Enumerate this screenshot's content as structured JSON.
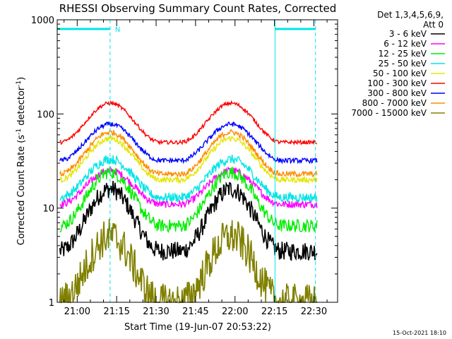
{
  "chart_data": {
    "type": "line",
    "title": "RHESSI Observing Summary Count Rates, Corrected",
    "xlabel": "Start Time (19-Jun-07 20:53:22)",
    "ylabel_main": "Corrected Count Rate (s",
    "ylabel_sup1": "-1",
    "ylabel_mid": " detector",
    "ylabel_sup2": "-1",
    "ylabel_end": ")",
    "yscale": "log",
    "ylim": [
      1,
      1000
    ],
    "xlim_minutes": [
      -7.6,
      99.0
    ],
    "x_ticks": [
      {
        "minutes": 0,
        "label": "21:00"
      },
      {
        "minutes": 15,
        "label": "21:15"
      },
      {
        "minutes": 30,
        "label": "21:30"
      },
      {
        "minutes": 45,
        "label": "21:45"
      },
      {
        "minutes": 60,
        "label": "22:00"
      },
      {
        "minutes": 75,
        "label": "22:15"
      },
      {
        "minutes": 90,
        "label": "22:30"
      }
    ],
    "y_ticks": [
      {
        "value": 1,
        "label": "1"
      },
      {
        "value": 10,
        "label": "10"
      },
      {
        "value": 100,
        "label": "100"
      },
      {
        "value": 1000,
        "label": "1000"
      }
    ],
    "legend_header": [
      "Det 1,3,4,5,6,9,",
      "Att 0"
    ],
    "peaks_minutes": [
      12.5,
      58.5
    ],
    "series": [
      {
        "name": "3 - 6 keV",
        "color": "#000000",
        "base": 3.5,
        "peak": 16,
        "noise": 0.1
      },
      {
        "name": "6 - 12 keV",
        "color": "#ff00ff",
        "base": 11,
        "peak": 25,
        "noise": 0.04
      },
      {
        "name": "12 - 25 keV",
        "color": "#00ee00",
        "base": 6.5,
        "peak": 24,
        "noise": 0.07
      },
      {
        "name": "25 - 50 keV",
        "color": "#00e5e5",
        "base": 13,
        "peak": 33,
        "noise": 0.05
      },
      {
        "name": "50 - 100 keV",
        "color": "#e5e500",
        "base": 20,
        "peak": 55,
        "noise": 0.03
      },
      {
        "name": "100 - 300 keV",
        "color": "#ff0000",
        "base": 50,
        "peak": 130,
        "noise": 0.02
      },
      {
        "name": "300 - 800 keV",
        "color": "#0000ff",
        "base": 32,
        "peak": 78,
        "noise": 0.025
      },
      {
        "name": "800 - 7000 keV",
        "color": "#ff8c00",
        "base": 23,
        "peak": 64,
        "noise": 0.03
      },
      {
        "name": "7000 - 15000 keV",
        "color": "#808000",
        "base": 1.0,
        "peak": 5,
        "noise": 0.2
      }
    ],
    "annotations": {
      "night_bars_minutes": [
        [
          -7.6,
          12.5
        ],
        [
          75.2,
          90.6
        ]
      ],
      "night_bar_color": "#00e5e5",
      "vertical_lines_minutes": [
        12.5,
        90.6
      ],
      "solid_vertical_lines_minutes": [
        -7.6,
        75.2
      ],
      "marker_label": "N",
      "marker_minutes": 12.5
    }
  },
  "footer": {
    "timestamp": "15-Oct-2021 18:10"
  }
}
